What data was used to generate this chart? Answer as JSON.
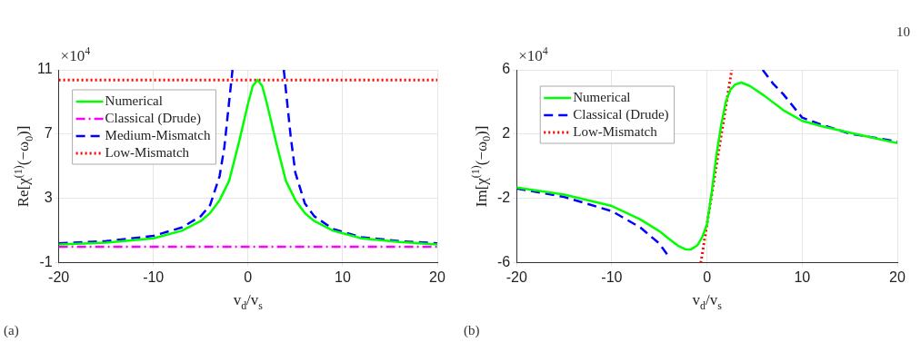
{
  "chart_data": [
    {
      "type": "line",
      "xlabel": "v$_{d}$/v$_{s}$",
      "ylabel": "Re[χ$^{(1)}$(−ω$_{0}$)]",
      "annotations": [
        "×10$^{4}$",
        "(a)"
      ],
      "xlim": [
        -20,
        20
      ],
      "ylim": [
        -1,
        11
      ],
      "xticks": [
        -20,
        -10,
        0,
        10,
        20
      ],
      "yticks": [
        -1,
        3,
        7,
        11
      ],
      "grid": true,
      "legend": "top left",
      "marker": "none",
      "series": [
        {
          "name": "Numerical",
          "color": "#00ff00",
          "line_style": "solid",
          "x": [
            -20,
            -15,
            -10,
            -7,
            -5,
            -4,
            -3,
            -2,
            -1,
            0,
            0.5,
            1,
            1.5,
            2,
            3,
            4,
            5,
            6,
            7,
            9,
            12,
            16,
            20
          ],
          "values": [
            0.15,
            0.26,
            0.53,
            1.0,
            1.6,
            2.1,
            2.9,
            4.1,
            6.4,
            8.9,
            10.0,
            10.37,
            10.0,
            8.9,
            6.4,
            4.1,
            2.9,
            2.1,
            1.6,
            1.0,
            0.53,
            0.3,
            0.15
          ]
        },
        {
          "name": "Classical (Drude)",
          "color": "#ff00ff",
          "line_style": "dashdot",
          "x": [
            -20,
            20
          ],
          "values": [
            0,
            0
          ]
        },
        {
          "name": "Medium-Mismatch",
          "color": "#0000ff",
          "line_style": "dashed",
          "x": [
            -20,
            -15,
            -10,
            -7,
            -5,
            -4,
            -3,
            -2.5,
            -2,
            -1.64,
            null,
            3.78,
            4.5,
            5,
            6,
            7,
            9,
            12,
            16,
            20
          ],
          "values": [
            0.22,
            0.35,
            0.68,
            1.2,
            1.9,
            2.6,
            4.4,
            6.2,
            9.0,
            11,
            null,
            11,
            6.9,
            4.6,
            2.7,
            1.9,
            1.1,
            0.6,
            0.35,
            0.22
          ]
        },
        {
          "name": "Low-Mismatch",
          "color": "#ff0000",
          "line_style": "dotted",
          "x": [
            -20,
            20
          ],
          "values": [
            10.37,
            10.37
          ]
        }
      ]
    },
    {
      "type": "line",
      "xlabel": "v$_{d}$/v$_{s}$",
      "ylabel": "Im[χ$^{(1)}$(−ω$_{0}$)]",
      "annotations": [
        "×10$^{4}$",
        "(b)",
        "10"
      ],
      "xlim": [
        -20,
        20
      ],
      "ylim": [
        -6,
        6
      ],
      "xticks": [
        -20,
        -10,
        0,
        10,
        20
      ],
      "yticks": [
        -6,
        -2,
        2,
        6
      ],
      "grid": true,
      "legend": "top left",
      "marker": "none",
      "series": [
        {
          "name": "Numerical",
          "color": "#00ff00",
          "line_style": "solid",
          "x": [
            -20,
            -15,
            -10,
            -7,
            -5,
            -4,
            -3,
            -2.3,
            -1.67,
            -1,
            -0.5,
            0,
            0.5,
            1,
            1.5,
            2,
            2.5,
            3,
            3.6,
            4.5,
            5,
            6,
            8,
            10,
            12,
            15,
            20
          ],
          "values": [
            -1.32,
            -1.75,
            -2.46,
            -3.3,
            -4.03,
            -4.5,
            -4.95,
            -5.15,
            -5.16,
            -4.9,
            -4.4,
            -3.6,
            -1.6,
            0.75,
            2.6,
            4.07,
            4.8,
            5.1,
            5.21,
            5.0,
            4.8,
            4.4,
            3.5,
            2.83,
            2.5,
            2.1,
            1.44
          ]
        },
        {
          "name": "Classical (Drude)",
          "color": "#0000ff",
          "line_style": "dashed",
          "x": [
            -20,
            -15,
            -10,
            -7,
            -5,
            -4.06,
            null,
            5.85,
            7,
            8,
            10,
            12,
            15,
            20
          ],
          "values": [
            -1.37,
            -1.9,
            -2.78,
            -3.8,
            -4.8,
            -5.58,
            null,
            6,
            5.1,
            4.5,
            3.03,
            2.6,
            2.04,
            1.54
          ]
        },
        {
          "name": "Low-Mismatch",
          "color": "#ff0000",
          "line_style": "dotted",
          "x": [
            -0.65,
            2.6
          ],
          "values": [
            -6,
            6
          ]
        }
      ]
    }
  ]
}
